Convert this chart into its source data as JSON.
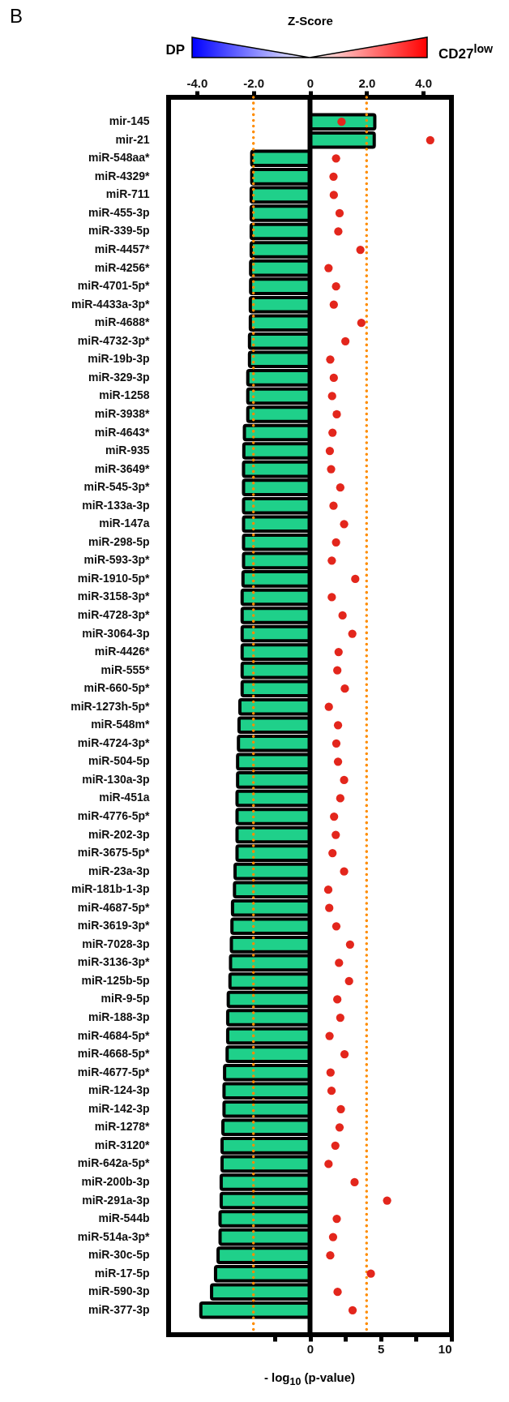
{
  "chart_data": {
    "type": "bar",
    "orientation": "horizontal",
    "xlabel": "Z-Score",
    "x2label": "- log$_{10}$ (p-value)",
    "annotations": [
      "B",
      "DP",
      "CD27$^{low}$"
    ],
    "categories": [
      "mir-145",
      "mir-21",
      "miR-548aa*",
      "miR-4329*",
      "miR-711",
      "miR-455-3p",
      "miR-339-5p",
      "miR-4457*",
      "miR-4256*",
      "miR-4701-5p*",
      "miR-4433a-3p*",
      "miR-4688*",
      "miR-4732-3p*",
      "miR-19b-3p",
      "miR-329-3p",
      "miR-1258",
      "miR-3938*",
      "miR-4643*",
      "miR-935",
      "miR-3649*",
      "miR-545-3p*",
      "miR-133a-3p",
      "miR-147a",
      "miR-298-5p",
      "miR-593-3p*",
      "miR-1910-5p*",
      "miR-3158-3p*",
      "miR-4728-3p*",
      "miR-3064-3p",
      "miR-4426*",
      "miR-555*",
      "miR-660-5p*",
      "miR-1273h-5p*",
      "miR-548m*",
      "miR-4724-3p*",
      "miR-504-5p",
      "miR-130a-3p",
      "miR-451a",
      "miR-4776-5p*",
      "miR-202-3p",
      "miR-3675-5p*",
      "miR-23a-3p",
      "miR-181b-1-3p",
      "miR-4687-5p*",
      "miR-3619-3p*",
      "miR-7028-3p",
      "miR-3136-3p*",
      "miR-125b-5p",
      "miR-9-5p",
      "miR-188-3p",
      "miR-4684-5p*",
      "miR-4668-5p*",
      "miR-4677-5p*",
      "miR-124-3p",
      "miR-142-3p",
      "miR-1278*",
      "miR-3120*",
      "miR-642a-5p*",
      "miR-200b-3p",
      "miR-291a-3p",
      "miR-544b",
      "miR-514a-3p*",
      "miR-30c-5p",
      "miR-17-5p",
      "miR-590-3p",
      "miR-377-3p"
    ],
    "series": [
      {
        "type": "bar",
        "color": "#1fd08a",
        "values": [
          2.29,
          2.27,
          -2.06,
          -2.06,
          -2.08,
          -2.08,
          -2.08,
          -2.08,
          -2.1,
          -2.1,
          -2.11,
          -2.11,
          -2.14,
          -2.14,
          -2.2,
          -2.2,
          -2.2,
          -2.32,
          -2.34,
          -2.35,
          -2.35,
          -2.35,
          -2.35,
          -2.35,
          -2.35,
          -2.37,
          -2.4,
          -2.4,
          -2.4,
          -2.4,
          -2.4,
          -2.4,
          -2.48,
          -2.51,
          -2.53,
          -2.56,
          -2.56,
          -2.58,
          -2.58,
          -2.58,
          -2.58,
          -2.65,
          -2.67,
          -2.74,
          -2.76,
          -2.78,
          -2.81,
          -2.83,
          -2.89,
          -2.91,
          -2.91,
          -2.93,
          -3.02,
          -3.04,
          -3.04,
          -3.08,
          -3.11,
          -3.11,
          -3.14,
          -3.14,
          -3.18,
          -3.18,
          -3.25,
          -3.34,
          -3.48,
          -3.86
        ]
      },
      {
        "type": "scatter",
        "color": "#e3261c",
        "axis": "x2",
        "values": [
          2.23,
          8.5,
          1.84,
          1.66,
          1.68,
          2.09,
          2.0,
          3.56,
          1.31,
          1.84,
          1.68,
          3.63,
          2.5,
          1.43,
          1.68,
          1.56,
          1.89,
          1.59,
          1.4,
          1.49,
          2.14,
          1.66,
          2.41,
          1.84,
          1.54,
          3.2,
          1.54,
          2.3,
          2.99,
          2.02,
          1.93,
          2.46,
          1.33,
          1.98,
          1.86,
          1.98,
          2.41,
          2.14,
          1.7,
          1.82,
          1.59,
          2.41,
          1.29,
          1.36,
          1.86,
          2.83,
          2.05,
          2.76,
          1.93,
          2.14,
          1.38,
          2.44,
          1.45,
          1.52,
          2.18,
          2.09,
          1.79,
          1.31,
          3.15,
          5.45,
          1.89,
          1.63,
          1.43,
          4.3,
          1.95,
          3.01
        ]
      }
    ],
    "xlim": [
      -5,
      5
    ],
    "xticks": [
      {
        "value": -4,
        "label": "-4.0"
      },
      {
        "value": -2,
        "label": "-2.0"
      },
      0,
      {
        "value": 2,
        "label": "2.0"
      },
      {
        "value": 4,
        "label": "4.0"
      }
    ],
    "x2lim": [
      -10,
      10
    ],
    "x2ticks": [
      {
        "value": -2.5,
        "label": null
      },
      0,
      {
        "value": 2.5,
        "label": null
      },
      5,
      {
        "value": 7.5,
        "label": null
      },
      10
    ],
    "ref_lines": [
      {
        "axis": "x",
        "value": 0,
        "color": "#000000",
        "line_style": "solid"
      },
      {
        "axis": "x",
        "value": -2,
        "color": "#ff8c00",
        "line_style": "dotted"
      },
      {
        "axis": "x",
        "value": 2,
        "color": "#ff8c00",
        "line_style": "dotted"
      }
    ],
    "marker": "circle"
  }
}
